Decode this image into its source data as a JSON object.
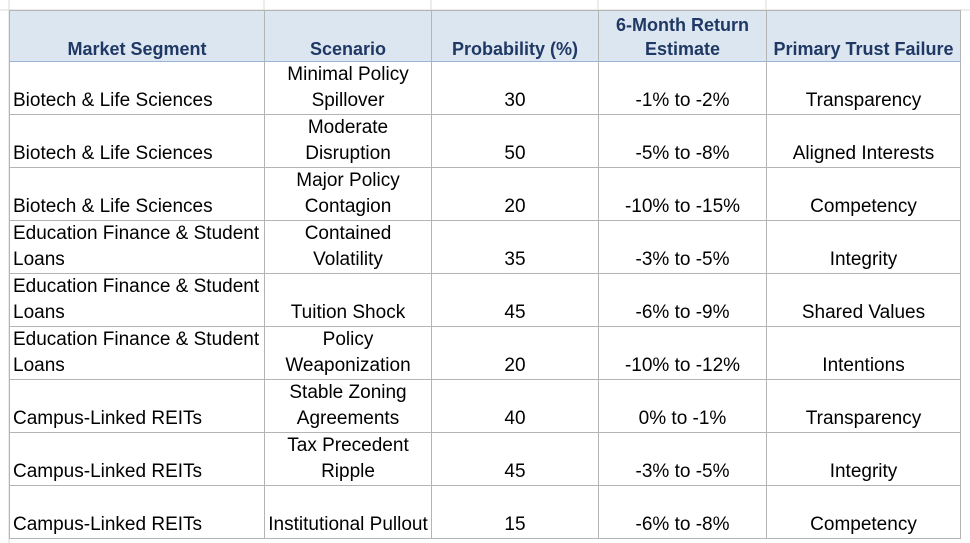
{
  "table": {
    "headers": [
      "Market Segment",
      "Scenario",
      "Probability (%)",
      "6-Month Return Estimate",
      "Primary Trust Failure"
    ],
    "rows": [
      {
        "segment": "Biotech & Life Sciences",
        "scenario": "Minimal Policy Spillover",
        "probability": "30",
        "return_estimate": "-1% to -2%",
        "trust_failure": "Transparency"
      },
      {
        "segment": "Biotech & Life Sciences",
        "scenario": "Moderate Disruption",
        "probability": "50",
        "return_estimate": "-5% to -8%",
        "trust_failure": "Aligned Interests"
      },
      {
        "segment": "Biotech & Life Sciences",
        "scenario": "Major Policy Contagion",
        "probability": "20",
        "return_estimate": "-10% to -15%",
        "trust_failure": "Competency"
      },
      {
        "segment": "Education Finance & Student Loans",
        "scenario": "Contained Volatility",
        "probability": "35",
        "return_estimate": "-3% to -5%",
        "trust_failure": "Integrity"
      },
      {
        "segment": "Education Finance & Student Loans",
        "scenario": "Tuition Shock",
        "probability": "45",
        "return_estimate": "-6% to -9%",
        "trust_failure": "Shared Values"
      },
      {
        "segment": "Education Finance & Student Loans",
        "scenario": "Policy Weaponization",
        "probability": "20",
        "return_estimate": "-10% to -12%",
        "trust_failure": "Intentions"
      },
      {
        "segment": "Campus-Linked REITs",
        "scenario": "Stable Zoning Agreements",
        "probability": "40",
        "return_estimate": "0% to -1%",
        "trust_failure": "Transparency"
      },
      {
        "segment": "Campus-Linked REITs",
        "scenario": "Tax Precedent Ripple",
        "probability": "45",
        "return_estimate": "-3% to -5%",
        "trust_failure": "Integrity"
      },
      {
        "segment": "Campus-Linked REITs",
        "scenario": "Institutional Pullout",
        "probability": "15",
        "return_estimate": "-6% to -8%",
        "trust_failure": "Competency"
      }
    ]
  },
  "colors": {
    "header_fill": "#dce6f1",
    "header_text": "#1f3864",
    "gridline": "#b4b4b4"
  }
}
